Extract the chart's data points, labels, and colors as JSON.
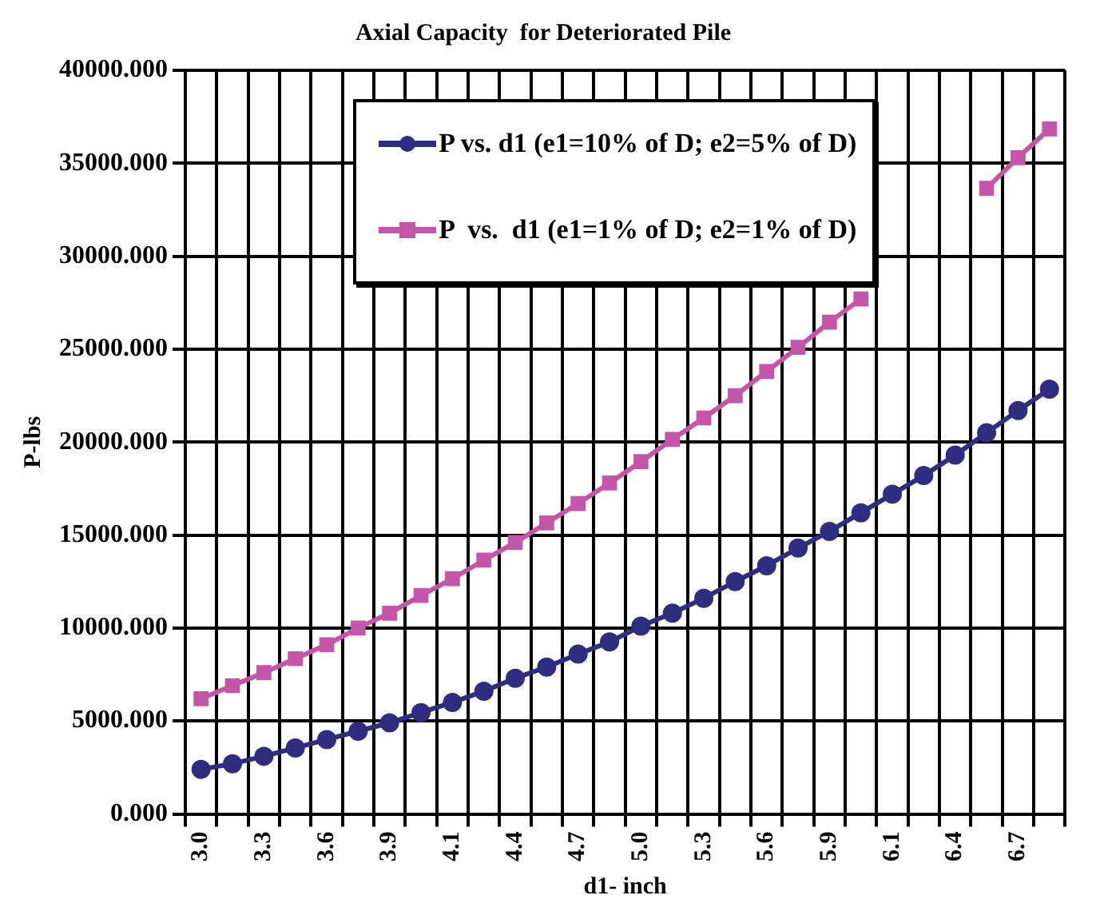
{
  "chart_data": {
    "type": "line",
    "title": "Axial Capacity  for Deteriorated Pile",
    "xlabel": "d1- inch",
    "ylabel": "P-lbs",
    "categories": [
      "3.0",
      null,
      "3.3",
      null,
      "3.6",
      null,
      "3.9",
      null,
      "4.1",
      null,
      "4.4",
      null,
      "4.7",
      null,
      "5.0",
      null,
      "5.3",
      null,
      "5.6",
      null,
      "5.9",
      null,
      "6.1",
      null,
      "6.4",
      null,
      "6.7",
      null
    ],
    "series": [
      {
        "name": "P vs. d1 (e1=10% of D; e2=5% of D)",
        "color": "#2e2d80",
        "marker": "circle",
        "values": [
          2400,
          2700,
          3100,
          3550,
          4000,
          4450,
          4900,
          5450,
          6000,
          6600,
          7300,
          7900,
          8600,
          9250,
          10100,
          10800,
          11600,
          12500,
          13350,
          14300,
          15200,
          16200,
          17200,
          18200,
          19300,
          20500,
          21700,
          22850
        ]
      },
      {
        "name": "P  vs.  d1 (e1=1% of D; e2=1% of D)",
        "color": "#c455a8",
        "marker": "square",
        "values": [
          6200,
          6900,
          7600,
          8350,
          9100,
          10000,
          10800,
          11750,
          12650,
          13650,
          14600,
          15650,
          16700,
          17800,
          18950,
          20150,
          21300,
          22500,
          23800,
          25100,
          26450,
          27700,
          null,
          null,
          null,
          33650,
          35300,
          36850
        ]
      }
    ],
    "ylim": [
      0,
      40000
    ],
    "yticks": [
      {
        "value": 0,
        "label": "0.000"
      },
      {
        "value": 5000,
        "label": "5000.000"
      },
      {
        "value": 10000,
        "label": "10000.000"
      },
      {
        "value": 15000,
        "label": "15000.000"
      },
      {
        "value": 20000,
        "label": "20000.000"
      },
      {
        "value": 25000,
        "label": "25000.000"
      },
      {
        "value": 30000,
        "label": "30000.000"
      },
      {
        "value": 35000,
        "label": "35000.000"
      },
      {
        "value": 40000,
        "label": "40000.000"
      }
    ],
    "grid": true,
    "legend": "top right"
  }
}
